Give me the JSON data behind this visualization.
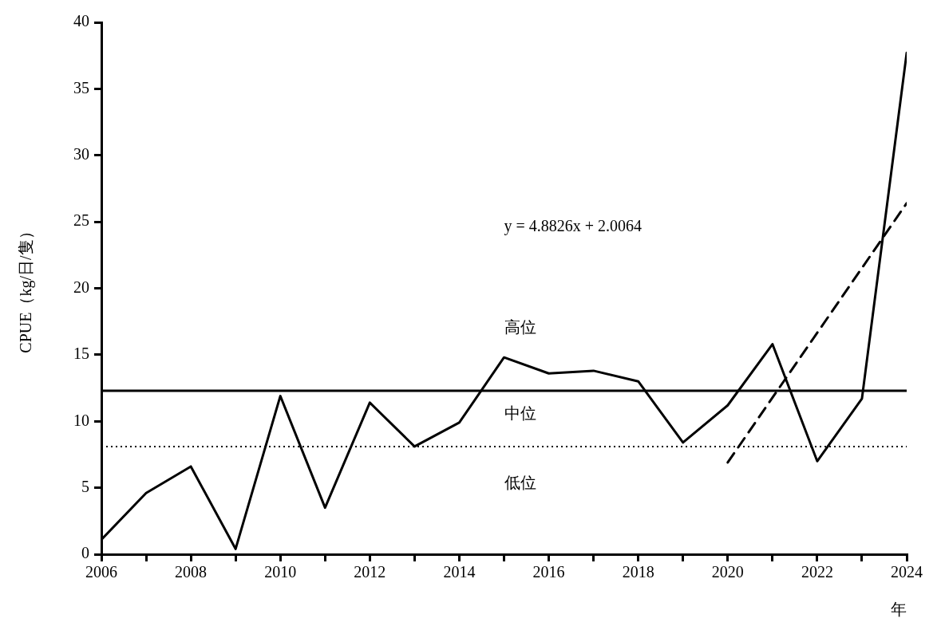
{
  "chart_data": {
    "type": "line",
    "xlabel": "年",
    "ylabel": "CPUE（kg/日/隻）",
    "x": [
      2006,
      2007,
      2008,
      2009,
      2010,
      2011,
      2012,
      2013,
      2014,
      2015,
      2016,
      2017,
      2018,
      2019,
      2020,
      2021,
      2022,
      2023,
      2024
    ],
    "series": [
      {
        "color": "#000000",
        "values": [
          1.1,
          4.6,
          6.6,
          0.4,
          11.9,
          3.5,
          11.4,
          8.1,
          9.9,
          14.8,
          13.6,
          13.8,
          13.0,
          8.4,
          11.2,
          15.8,
          7.0,
          11.7,
          37.7
        ],
        "line_style": "solid"
      },
      {
        "type": "line",
        "color": "#000000",
        "x": [
          2020,
          2024
        ],
        "values": [
          6.9,
          26.4
        ],
        "line_style": "dashed"
      }
    ],
    "xlim": [
      2006,
      2024
    ],
    "xticks": [
      2006,
      {
        "value": 2007,
        "label": null
      },
      2008,
      {
        "value": 2009,
        "label": null
      },
      2010,
      {
        "value": 2011,
        "label": null
      },
      2012,
      {
        "value": 2013,
        "label": null
      },
      2014,
      {
        "value": 2015,
        "label": null
      },
      2016,
      {
        "value": 2017,
        "label": null
      },
      2018,
      {
        "value": 2019,
        "label": null
      },
      2020,
      {
        "value": 2021,
        "label": null
      },
      2022,
      {
        "value": 2023,
        "label": null
      },
      2024
    ],
    "ylim": [
      0,
      40
    ],
    "yticks": [
      0,
      5,
      10,
      15,
      20,
      25,
      30,
      35,
      40
    ],
    "ref_lines": [
      {
        "axis": "y",
        "value": 12.3,
        "line_style": "solid",
        "color": "#000000"
      },
      {
        "axis": "y",
        "value": 8.1,
        "line_style": "dotted",
        "color": "#000000"
      }
    ],
    "annotations": [
      "y = 4.8826x + 2.0064",
      "高位",
      "中位",
      "低位"
    ],
    "grid": false,
    "legend": false,
    "marker": "none"
  }
}
